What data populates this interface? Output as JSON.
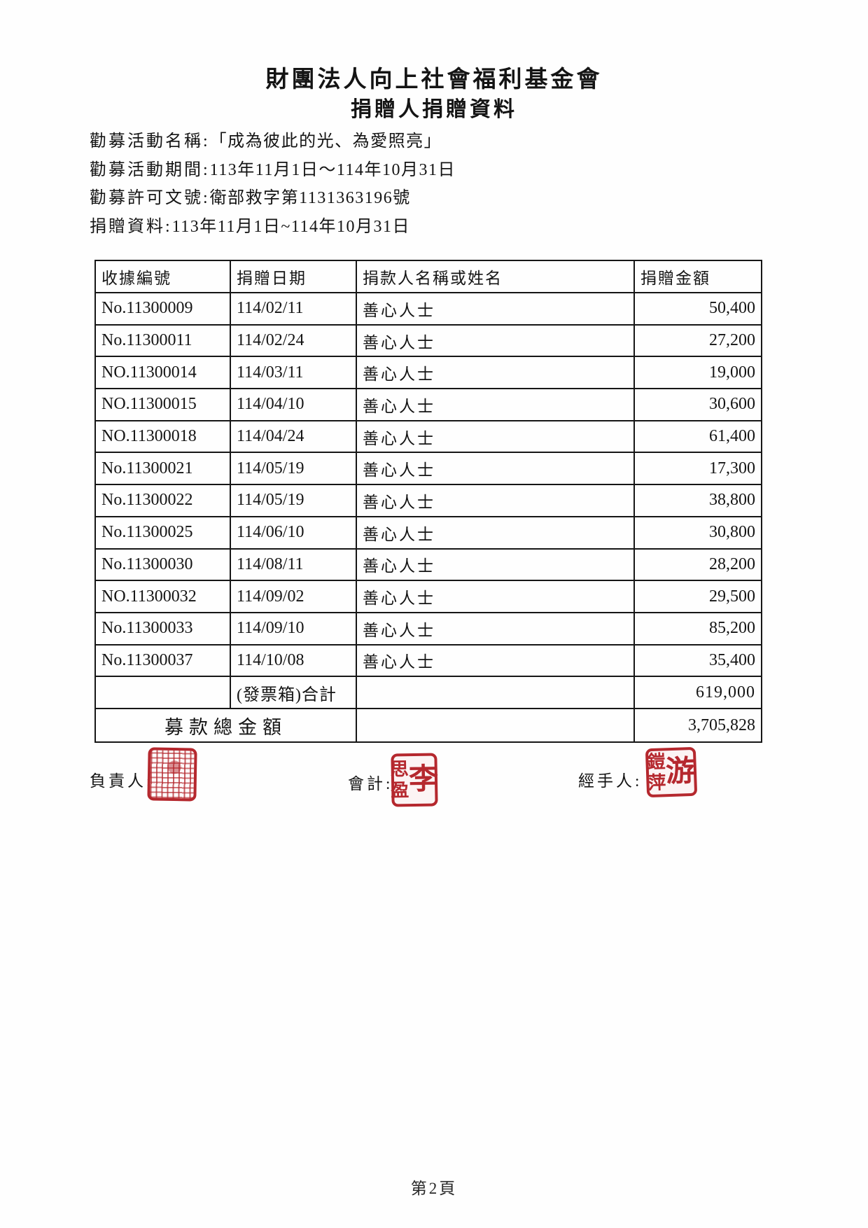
{
  "page": {
    "title": "財團法人向上社會福利基金會",
    "subtitle": "捐贈人捐贈資料",
    "page_number": "第2頁"
  },
  "meta": {
    "lines": [
      {
        "label": "勸募活動名稱:",
        "value": "「成為彼此的光、為愛照亮」"
      },
      {
        "label": "勸募活動期間:",
        "value": "113年11月1日～114年10月31日"
      },
      {
        "label": "勸募許可文號:",
        "value": "衛部救字第1131363196號"
      },
      {
        "label": "捐贈資料:",
        "value": "113年11月1日~114年10月31日"
      }
    ]
  },
  "table": {
    "headers": [
      "收據編號",
      "捐贈日期",
      "捐款人名稱或姓名",
      "捐贈金額"
    ],
    "rows": [
      {
        "receipt": "No.11300009",
        "date": "114/02/11",
        "donor": "善心人士",
        "amount": "50,400"
      },
      {
        "receipt": "No.11300011",
        "date": "114/02/24",
        "donor": "善心人士",
        "amount": "27,200"
      },
      {
        "receipt": "NO.11300014",
        "date": "114/03/11",
        "donor": "善心人士",
        "amount": "19,000"
      },
      {
        "receipt": "NO.11300015",
        "date": "114/04/10",
        "donor": "善心人士",
        "amount": "30,600"
      },
      {
        "receipt": "NO.11300018",
        "date": "114/04/24",
        "donor": "善心人士",
        "amount": "61,400"
      },
      {
        "receipt": "No.11300021",
        "date": "114/05/19",
        "donor": "善心人士",
        "amount": "17,300"
      },
      {
        "receipt": "No.11300022",
        "date": "114/05/19",
        "donor": "善心人士",
        "amount": "38,800"
      },
      {
        "receipt": "No.11300025",
        "date": "114/06/10",
        "donor": "善心人士",
        "amount": "30,800"
      },
      {
        "receipt": "No.11300030",
        "date": "114/08/11",
        "donor": "善心人士",
        "amount": "28,200"
      },
      {
        "receipt": "NO.11300032",
        "date": "114/09/02",
        "donor": "善心人士",
        "amount": "29,500"
      },
      {
        "receipt": "No.11300033",
        "date": "114/09/10",
        "donor": "善心人士",
        "amount": "85,200"
      },
      {
        "receipt": "No.11300037",
        "date": "114/10/08",
        "donor": "善心人士",
        "amount": "35,400"
      }
    ],
    "subtotal": {
      "label": "(發票箱)合計",
      "amount": "619,000"
    },
    "total": {
      "label": "募款總金額",
      "amount": "3,705,828"
    }
  },
  "signatures": [
    {
      "label": "負責人:",
      "seal_type": "ornate-illegible"
    },
    {
      "label": "會計:",
      "seal_right": "李",
      "seal_left_top": "思",
      "seal_left_bottom": "盈"
    },
    {
      "label": "經手人:",
      "seal_right": "游",
      "seal_left_top": "鎧",
      "seal_left_bottom": "萍"
    }
  ],
  "colors": {
    "seal_red": "#b5282e",
    "ink": "#141414"
  }
}
